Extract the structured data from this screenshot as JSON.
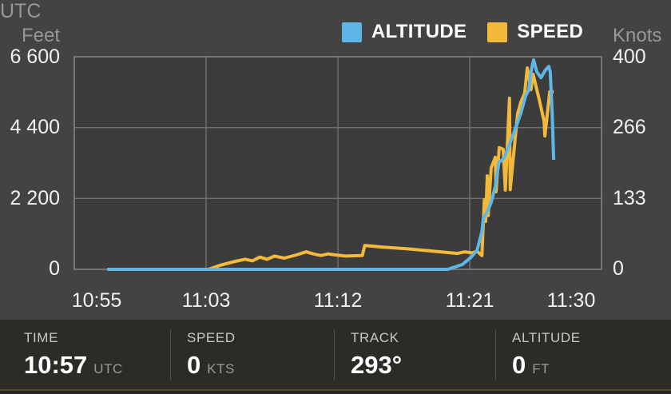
{
  "chart_data": {
    "type": "line",
    "title": "",
    "grid": true,
    "legend_position": "top",
    "x_unit": "UTC",
    "x_ticks": [
      "10:55",
      "11:03",
      "11:12",
      "11:21",
      "11:30"
    ],
    "left_axis": {
      "unit": "Feet",
      "range": [
        0,
        6600
      ],
      "ticks": [
        0,
        2200,
        4400,
        6600
      ],
      "tick_labels_top_down": [
        "6 600",
        "4 400",
        "2 200",
        "0"
      ]
    },
    "right_axis": {
      "unit": "Knots",
      "range": [
        0,
        400
      ],
      "ticks": [
        0,
        133,
        266,
        400
      ],
      "tick_labels_top_down": [
        "400",
        "266",
        "133",
        "0"
      ]
    },
    "series": [
      {
        "name": "ALTITUDE",
        "color": "#5fb7e8",
        "axis": "left",
        "unit": "ft",
        "points": [
          [
            "10:57:00",
            0
          ],
          [
            "11:19:30",
            0
          ],
          [
            "11:20:30",
            150
          ],
          [
            "11:21:05",
            370
          ],
          [
            "11:21:30",
            590
          ],
          [
            "11:21:50",
            1170
          ],
          [
            "11:21:56",
            1590
          ],
          [
            "11:22:12",
            1790
          ],
          [
            "11:22:28",
            2080
          ],
          [
            "11:22:45",
            2580
          ],
          [
            "11:23:00",
            3320
          ],
          [
            "11:23:20",
            3450
          ],
          [
            "11:23:40",
            3820
          ],
          [
            "11:24:00",
            4220
          ],
          [
            "11:24:16",
            4560
          ],
          [
            "11:24:29",
            4840
          ],
          [
            "11:24:49",
            5380
          ],
          [
            "11:25:02",
            5560
          ],
          [
            "11:25:10",
            6080
          ],
          [
            "11:25:18",
            6380
          ],
          [
            "11:25:22",
            6500
          ],
          [
            "11:25:35",
            6130
          ],
          [
            "11:25:52",
            5950
          ],
          [
            "11:26:10",
            6180
          ],
          [
            "11:26:24",
            6300
          ],
          [
            "11:26:30",
            6130
          ],
          [
            "11:26:38",
            4820
          ],
          [
            "11:26:44",
            3400
          ]
        ]
      },
      {
        "name": "SPEED",
        "color": "#f3b93a",
        "axis": "right",
        "unit": "kts",
        "points": [
          [
            "10:57:00",
            0
          ],
          [
            "11:03:10",
            0
          ],
          [
            "11:04:00",
            8
          ],
          [
            "11:05:00",
            15
          ],
          [
            "11:05:40",
            19
          ],
          [
            "11:06:10",
            16
          ],
          [
            "11:06:40",
            23
          ],
          [
            "11:07:10",
            19
          ],
          [
            "11:07:40",
            25
          ],
          [
            "11:08:20",
            21
          ],
          [
            "11:09:10",
            27
          ],
          [
            "11:09:50",
            33
          ],
          [
            "11:10:20",
            29
          ],
          [
            "11:10:50",
            26
          ],
          [
            "11:11:20",
            29
          ],
          [
            "11:11:50",
            27
          ],
          [
            "11:12:30",
            25
          ],
          [
            "11:13:40",
            26
          ],
          [
            "11:13:50",
            45
          ],
          [
            "11:15:00",
            42
          ],
          [
            "11:17:00",
            38
          ],
          [
            "11:19:00",
            33
          ],
          [
            "11:20:10",
            30
          ],
          [
            "11:20:40",
            33
          ],
          [
            "11:21:10",
            31
          ],
          [
            "11:21:30",
            34
          ],
          [
            "11:21:50",
            26
          ],
          [
            "11:22:00",
            131
          ],
          [
            "11:22:05",
            90
          ],
          [
            "11:22:12",
            176
          ],
          [
            "11:22:16",
            101
          ],
          [
            "11:22:28",
            191
          ],
          [
            "11:22:45",
            211
          ],
          [
            "11:22:48",
            146
          ],
          [
            "11:23:01",
            229
          ],
          [
            "11:23:17",
            226
          ],
          [
            "11:23:26",
            149
          ],
          [
            "11:23:43",
            322
          ],
          [
            "11:23:46",
            150
          ],
          [
            "11:24:16",
            292
          ],
          [
            "11:24:29",
            314
          ],
          [
            "11:24:45",
            331
          ],
          [
            "11:24:56",
            379
          ],
          [
            "11:25:11",
            338
          ],
          [
            "11:25:20",
            367
          ],
          [
            "11:25:45",
            319
          ],
          [
            "11:26:05",
            278
          ],
          [
            "11:26:08",
            251
          ],
          [
            "11:26:28",
            334
          ],
          [
            "11:26:44",
            334
          ]
        ]
      }
    ]
  },
  "info_bar": {
    "items": [
      {
        "label": "TIME",
        "value": "10:57",
        "unit": "UTC"
      },
      {
        "label": "SPEED",
        "value": "0",
        "unit": "KTS"
      },
      {
        "label": "TRACK",
        "value": "293°",
        "unit": ""
      },
      {
        "label": "ALTITUDE",
        "value": "0",
        "unit": "FT"
      }
    ]
  }
}
